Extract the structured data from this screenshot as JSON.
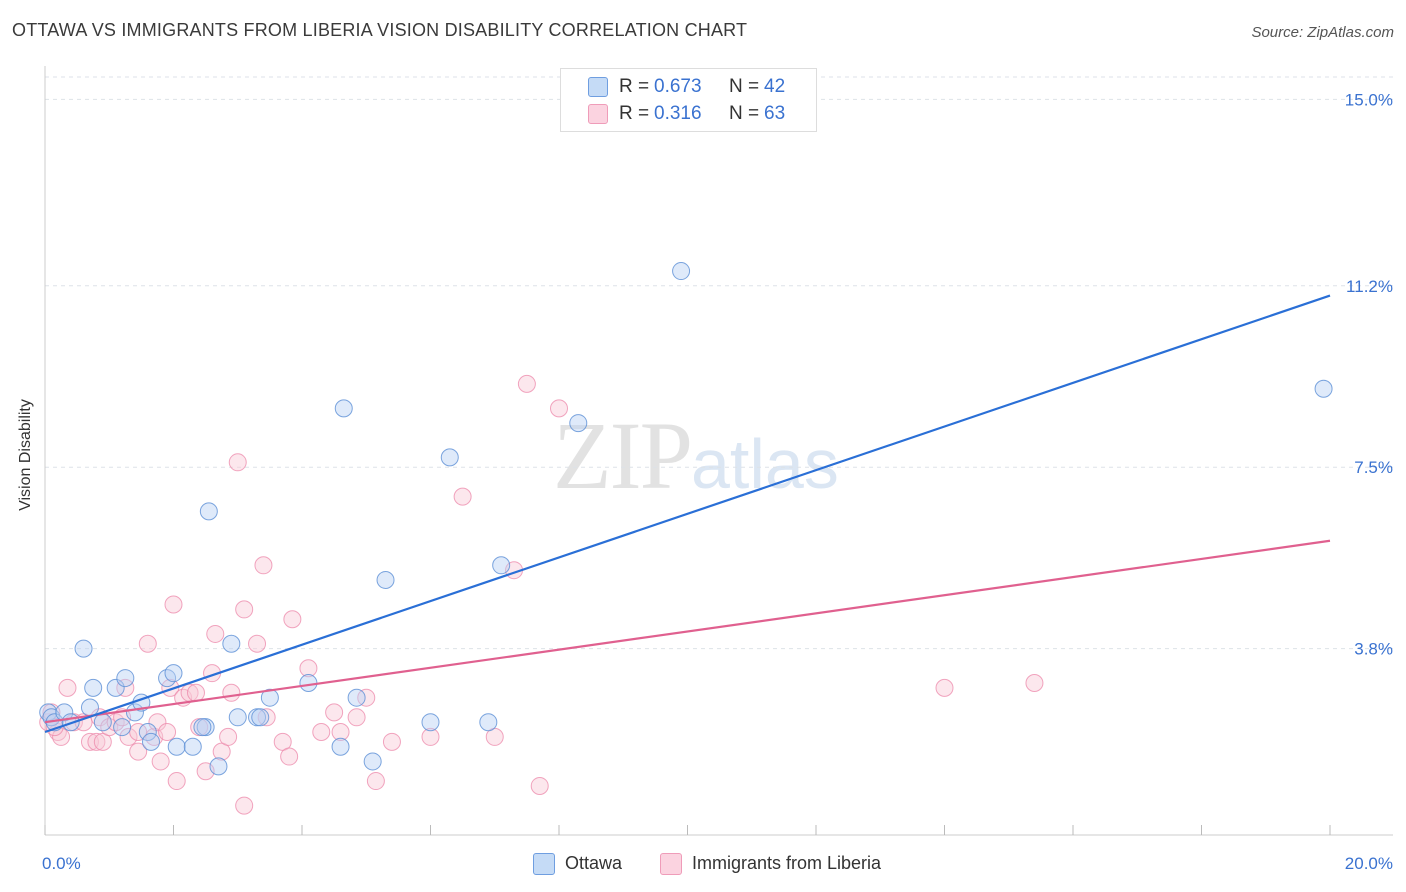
{
  "title": "OTTAWA VS IMMIGRANTS FROM LIBERIA VISION DISABILITY CORRELATION CHART",
  "source": "Source: ZipAtlas.com",
  "watermark": {
    "zip": "ZIP",
    "atlas": "atlas"
  },
  "colors": {
    "ottawa": "#5b8fd6",
    "ottawa_fill": "#b8d0f3",
    "ottawa_line": "#2a6fd6",
    "liberia": "#ec87a9",
    "liberia_fill": "#f8c9d8",
    "liberia_line": "#e0608f",
    "tick_text": "#3a72d0",
    "grid": "#dde2e8"
  },
  "legend_top": {
    "rows": [
      {
        "r_label": "R =",
        "r_value": "0.673",
        "n_label": "N =",
        "n_value": "42"
      },
      {
        "r_label": "R =",
        "r_value": "0.316",
        "n_label": "N =",
        "n_value": "63"
      }
    ]
  },
  "legend_bottom": {
    "ottawa": "Ottawa",
    "liberia": "Immigrants from Liberia"
  },
  "chart_data": {
    "type": "scatter",
    "title": "OTTAWA VS IMMIGRANTS FROM LIBERIA VISION DISABILITY CORRELATION CHART",
    "xlabel": "",
    "ylabel": "Vision Disability",
    "xlim": [
      0,
      20
    ],
    "ylim": [
      0,
      15.6
    ],
    "x_tick_labels": {
      "left": "0.0%",
      "right": "20.0%"
    },
    "y_ticks": [
      {
        "value": 3.8,
        "label": "3.8%"
      },
      {
        "value": 7.5,
        "label": "7.5%"
      },
      {
        "value": 11.2,
        "label": "11.2%"
      },
      {
        "value": 15.0,
        "label": "15.0%"
      }
    ],
    "series": [
      {
        "name": "Ottawa",
        "r": 0.673,
        "n": 42,
        "trend": [
          [
            0,
            2.1
          ],
          [
            20,
            11.0
          ]
        ],
        "points": [
          [
            0.05,
            2.5
          ],
          [
            0.1,
            2.4
          ],
          [
            0.15,
            2.3
          ],
          [
            0.3,
            2.5
          ],
          [
            0.4,
            2.3
          ],
          [
            0.6,
            3.8
          ],
          [
            0.7,
            2.6
          ],
          [
            0.75,
            3.0
          ],
          [
            0.9,
            2.3
          ],
          [
            1.1,
            3.0
          ],
          [
            1.2,
            2.2
          ],
          [
            1.25,
            3.2
          ],
          [
            1.4,
            2.5
          ],
          [
            1.5,
            2.7
          ],
          [
            1.6,
            2.1
          ],
          [
            1.65,
            1.9
          ],
          [
            1.9,
            3.2
          ],
          [
            2.0,
            3.3
          ],
          [
            2.05,
            1.8
          ],
          [
            2.3,
            1.8
          ],
          [
            2.5,
            2.2
          ],
          [
            2.55,
            6.6
          ],
          [
            2.7,
            1.4
          ],
          [
            2.9,
            3.9
          ],
          [
            3.0,
            2.4
          ],
          [
            3.3,
            2.4
          ],
          [
            3.35,
            2.4
          ],
          [
            3.5,
            2.8
          ],
          [
            4.1,
            3.1
          ],
          [
            4.6,
            1.8
          ],
          [
            4.65,
            8.7
          ],
          [
            4.85,
            2.8
          ],
          [
            5.1,
            1.5
          ],
          [
            5.3,
            5.2
          ],
          [
            6.0,
            2.3
          ],
          [
            6.3,
            7.7
          ],
          [
            6.9,
            2.3
          ],
          [
            7.1,
            5.5
          ],
          [
            8.3,
            8.4
          ],
          [
            9.9,
            11.5
          ],
          [
            19.9,
            9.1
          ],
          [
            2.45,
            2.2
          ]
        ]
      },
      {
        "name": "Immigrants from Liberia",
        "r": 0.316,
        "n": 63,
        "trend": [
          [
            0,
            2.3
          ],
          [
            20,
            6.0
          ]
        ],
        "points": [
          [
            0.05,
            2.3
          ],
          [
            0.1,
            2.5
          ],
          [
            0.2,
            2.1
          ],
          [
            0.25,
            2.0
          ],
          [
            0.35,
            3.0
          ],
          [
            0.45,
            2.3
          ],
          [
            0.6,
            2.3
          ],
          [
            0.7,
            1.9
          ],
          [
            0.8,
            1.9
          ],
          [
            0.85,
            2.4
          ],
          [
            0.9,
            1.9
          ],
          [
            1.0,
            2.2
          ],
          [
            1.1,
            2.3
          ],
          [
            1.2,
            2.4
          ],
          [
            1.25,
            3.0
          ],
          [
            1.3,
            2.0
          ],
          [
            1.45,
            2.1
          ],
          [
            1.45,
            1.7
          ],
          [
            1.6,
            3.9
          ],
          [
            1.7,
            2.0
          ],
          [
            1.75,
            2.3
          ],
          [
            1.8,
            1.5
          ],
          [
            1.9,
            2.1
          ],
          [
            1.95,
            3.0
          ],
          [
            2.0,
            4.7
          ],
          [
            2.05,
            1.1
          ],
          [
            2.15,
            2.8
          ],
          [
            2.25,
            2.9
          ],
          [
            2.35,
            2.9
          ],
          [
            2.4,
            2.2
          ],
          [
            2.5,
            1.3
          ],
          [
            2.6,
            3.3
          ],
          [
            2.65,
            4.1
          ],
          [
            2.75,
            1.7
          ],
          [
            2.85,
            2.0
          ],
          [
            2.9,
            2.9
          ],
          [
            3.0,
            7.6
          ],
          [
            3.1,
            0.6
          ],
          [
            3.1,
            4.6
          ],
          [
            3.3,
            3.9
          ],
          [
            3.4,
            5.5
          ],
          [
            3.45,
            2.4
          ],
          [
            3.7,
            1.9
          ],
          [
            3.8,
            1.6
          ],
          [
            3.85,
            4.4
          ],
          [
            4.1,
            3.4
          ],
          [
            4.3,
            2.1
          ],
          [
            4.5,
            2.5
          ],
          [
            4.6,
            2.1
          ],
          [
            4.85,
            2.4
          ],
          [
            5.0,
            2.8
          ],
          [
            5.15,
            1.1
          ],
          [
            5.4,
            1.9
          ],
          [
            6.0,
            2.0
          ],
          [
            6.5,
            6.9
          ],
          [
            7.0,
            2.0
          ],
          [
            7.3,
            5.4
          ],
          [
            7.5,
            9.2
          ],
          [
            7.7,
            1.0
          ],
          [
            8.0,
            8.7
          ],
          [
            14.0,
            3.0
          ],
          [
            15.4,
            3.1
          ],
          [
            0.15,
            2.2
          ]
        ]
      }
    ]
  }
}
